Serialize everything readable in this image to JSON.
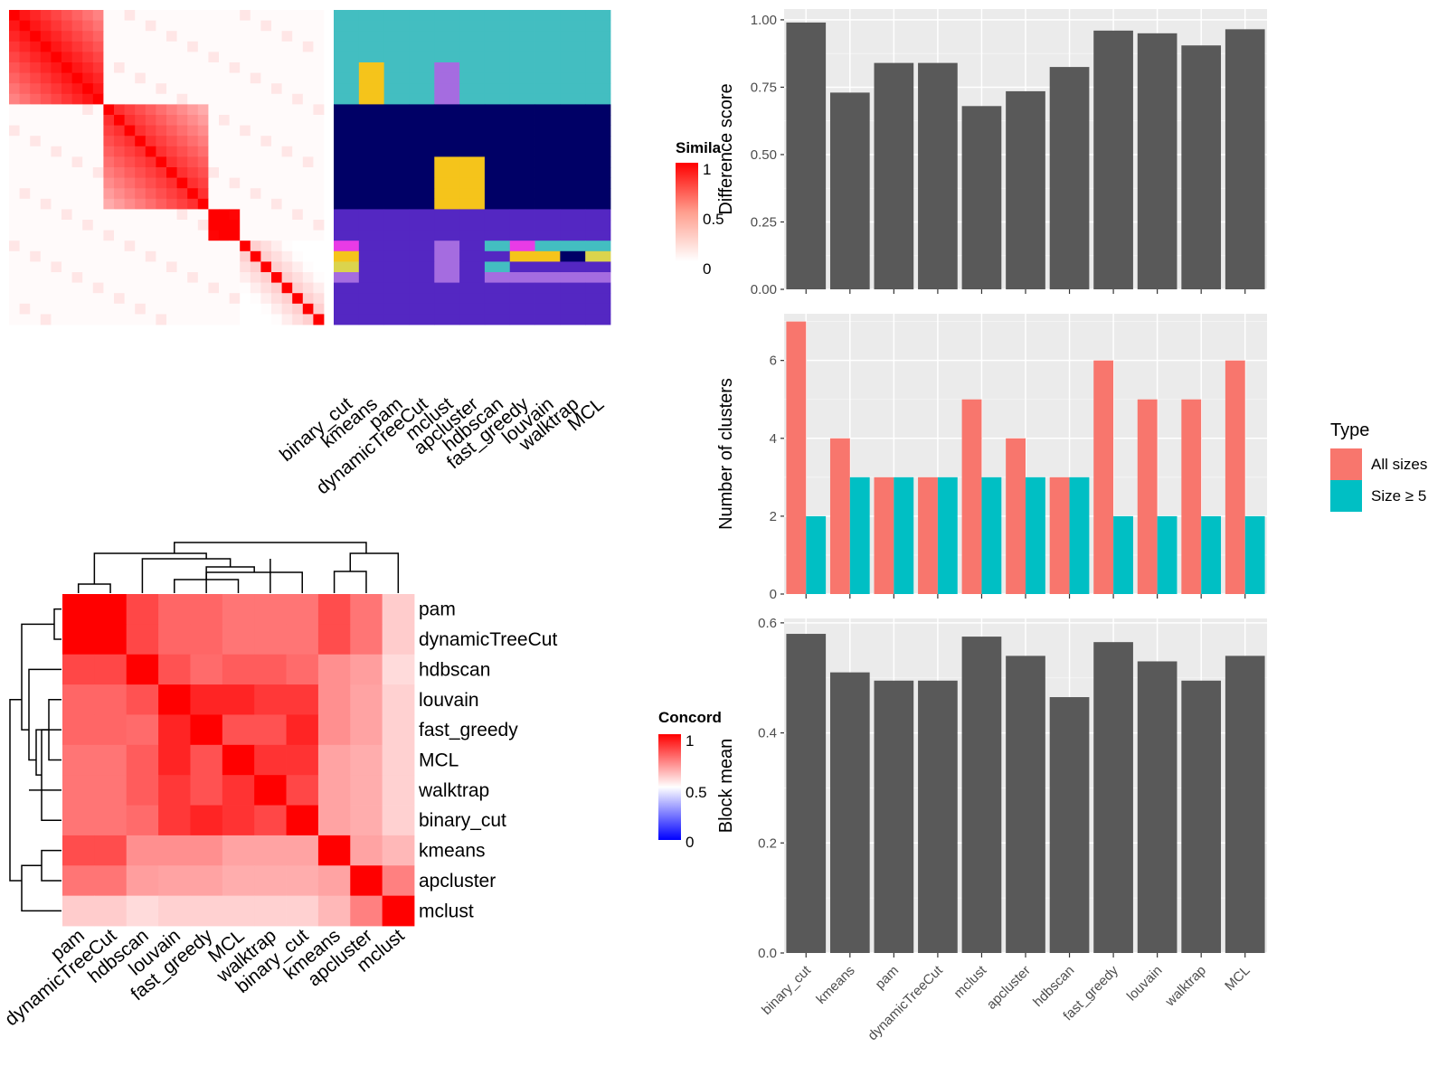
{
  "chart_data": [
    {
      "type": "heatmap",
      "legend_title": "Simila",
      "legend_ticks": [
        "1",
        "0.5",
        "0"
      ],
      "colors": {
        "high": "#ff0000",
        "low": "#ffffff"
      },
      "n_samples": 30,
      "blocks": [
        {
          "start": 0,
          "end": 9,
          "within": 0.72
        },
        {
          "start": 9,
          "end": 19,
          "within": 0.62
        },
        {
          "start": 19,
          "end": 22,
          "within": 0.85
        },
        {
          "start": 22,
          "end": 30,
          "within": 0.0
        }
      ],
      "cluster_columns": [
        "binary_cut",
        "kmeans",
        "pam",
        "dynamicTreeCut",
        "mclust",
        "apcluster",
        "hdbscan",
        "fast_greedy",
        "louvain",
        "walktrap",
        "MCL"
      ],
      "cluster_colors": [
        "#43bec1",
        "#000066",
        "#5427c2",
        "#f5c41b",
        "#a56ce0",
        "#e93be6",
        "#dbd44d"
      ],
      "cluster_segments": [
        {
          "rows": [
            0,
            9
          ],
          "default": 0,
          "overrides": [
            {
              "cols": [
                1,
                1
              ],
              "rows": [
                5,
                9
              ],
              "color": 3
            },
            {
              "cols": [
                4,
                4
              ],
              "rows": [
                5,
                9
              ],
              "color": 4
            }
          ]
        },
        {
          "rows": [
            9,
            19
          ],
          "default": 1,
          "overrides": [
            {
              "cols": [
                4,
                5
              ],
              "rows": [
                14,
                19
              ],
              "color": 3
            }
          ]
        },
        {
          "rows": [
            19,
            30
          ],
          "default": 2,
          "overrides": [
            {
              "cols": [
                0,
                0
              ],
              "rows": [
                22,
                23
              ],
              "color": 5
            },
            {
              "cols": [
                0,
                0
              ],
              "rows": [
                23,
                24
              ],
              "color": 3
            },
            {
              "cols": [
                0,
                0
              ],
              "rows": [
                24,
                25
              ],
              "color": 6
            },
            {
              "cols": [
                0,
                0
              ],
              "rows": [
                25,
                26
              ],
              "color": 4
            },
            {
              "cols": [
                4,
                4
              ],
              "rows": [
                22,
                26
              ],
              "color": 4
            },
            {
              "cols": [
                6,
                6
              ],
              "rows": [
                22,
                23
              ],
              "color": 0
            },
            {
              "cols": [
                6,
                6
              ],
              "rows": [
                24,
                25
              ],
              "color": 0
            },
            {
              "cols": [
                7,
                7
              ],
              "rows": [
                22,
                23
              ],
              "color": 5
            },
            {
              "cols": [
                7,
                8
              ],
              "rows": [
                23,
                24
              ],
              "color": 3
            },
            {
              "cols": [
                8,
                10
              ],
              "rows": [
                22,
                23
              ],
              "color": 0
            },
            {
              "cols": [
                9,
                9
              ],
              "rows": [
                23,
                24
              ],
              "color": 1
            },
            {
              "cols": [
                10,
                10
              ],
              "rows": [
                23,
                24
              ],
              "color": 6
            },
            {
              "cols": [
                6,
                10
              ],
              "rows": [
                25,
                26
              ],
              "color": 4
            }
          ]
        }
      ]
    },
    {
      "type": "heatmap",
      "legend_title": "Concord",
      "legend_ticks": [
        "1",
        "0.5",
        "0"
      ],
      "colors": {
        "high": "#ff0000",
        "mid": "#ffffff",
        "low": "#0000ff"
      },
      "labels": [
        "pam",
        "dynamicTreeCut",
        "hdbscan",
        "louvain",
        "fast_greedy",
        "MCL",
        "walktrap",
        "binary_cut",
        "kmeans",
        "apcluster",
        "mclust"
      ],
      "matrix": [
        [
          1,
          1,
          0.86,
          0.8,
          0.8,
          0.77,
          0.77,
          0.77,
          0.85,
          0.77,
          0.6
        ],
        [
          1,
          1,
          0.86,
          0.8,
          0.8,
          0.77,
          0.77,
          0.77,
          0.85,
          0.77,
          0.6
        ],
        [
          0.86,
          0.86,
          1,
          0.84,
          0.79,
          0.82,
          0.82,
          0.79,
          0.72,
          0.69,
          0.57
        ],
        [
          0.8,
          0.8,
          0.84,
          1,
          0.93,
          0.93,
          0.89,
          0.89,
          0.72,
          0.68,
          0.59
        ],
        [
          0.8,
          0.8,
          0.79,
          0.93,
          1,
          0.84,
          0.84,
          0.93,
          0.72,
          0.68,
          0.59
        ],
        [
          0.77,
          0.77,
          0.82,
          0.93,
          0.84,
          1,
          0.9,
          0.9,
          0.68,
          0.66,
          0.59
        ],
        [
          0.77,
          0.77,
          0.82,
          0.89,
          0.84,
          0.9,
          1,
          0.86,
          0.68,
          0.66,
          0.59
        ],
        [
          0.77,
          0.77,
          0.79,
          0.89,
          0.93,
          0.9,
          0.86,
          1,
          0.68,
          0.66,
          0.59
        ],
        [
          0.85,
          0.85,
          0.72,
          0.72,
          0.72,
          0.68,
          0.68,
          0.68,
          1,
          0.68,
          0.64
        ],
        [
          0.77,
          0.77,
          0.69,
          0.68,
          0.68,
          0.66,
          0.66,
          0.66,
          0.68,
          1,
          0.75
        ],
        [
          0.6,
          0.6,
          0.57,
          0.59,
          0.59,
          0.59,
          0.59,
          0.59,
          0.64,
          0.75,
          1
        ]
      ]
    },
    {
      "type": "bar",
      "categories": [
        "binary_cut",
        "kmeans",
        "pam",
        "dynamicTreeCut",
        "mclust",
        "apcluster",
        "hdbscan",
        "fast_greedy",
        "louvain",
        "walktrap",
        "MCL"
      ],
      "values": [
        0.99,
        0.73,
        0.84,
        0.84,
        0.68,
        0.735,
        0.825,
        0.96,
        0.95,
        0.905,
        0.965
      ],
      "ylabel": "Difference score",
      "ylim": [
        0,
        1.04
      ],
      "yticks": [
        "0.00",
        "0.25",
        "0.50",
        "0.75",
        "1.00"
      ],
      "bar_color": "#595959",
      "panel_color": "#ebebeb"
    },
    {
      "type": "bar",
      "categories": [
        "binary_cut",
        "kmeans",
        "pam",
        "dynamicTreeCut",
        "mclust",
        "apcluster",
        "hdbscan",
        "fast_greedy",
        "louvain",
        "walktrap",
        "MCL"
      ],
      "series": [
        {
          "name": "All sizes",
          "values": [
            7,
            4,
            3,
            3,
            5,
            4,
            3,
            6,
            5,
            5,
            6
          ],
          "color": "#f8766d"
        },
        {
          "name": "Size ≥ 5",
          "values": [
            2,
            3,
            3,
            3,
            3,
            3,
            3,
            2,
            2,
            2,
            2
          ],
          "color": "#00bfc4"
        }
      ],
      "ylabel": "Number of clusters",
      "ylim": [
        0,
        7.2
      ],
      "yticks": [
        "0",
        "2",
        "4",
        "6"
      ],
      "legend_title": "Type",
      "legend_position": "right",
      "panel_color": "#ebebeb"
    },
    {
      "type": "bar",
      "categories": [
        "binary_cut",
        "kmeans",
        "pam",
        "dynamicTreeCut",
        "mclust",
        "apcluster",
        "hdbscan",
        "fast_greedy",
        "louvain",
        "walktrap",
        "MCL"
      ],
      "values": [
        0.58,
        0.51,
        0.495,
        0.495,
        0.575,
        0.54,
        0.465,
        0.565,
        0.53,
        0.495,
        0.54
      ],
      "ylabel": "Block mean",
      "ylim": [
        0,
        0.608
      ],
      "yticks": [
        "0.0",
        "0.2",
        "0.4",
        "0.6"
      ],
      "bar_color": "#595959",
      "panel_color": "#ebebeb"
    }
  ]
}
